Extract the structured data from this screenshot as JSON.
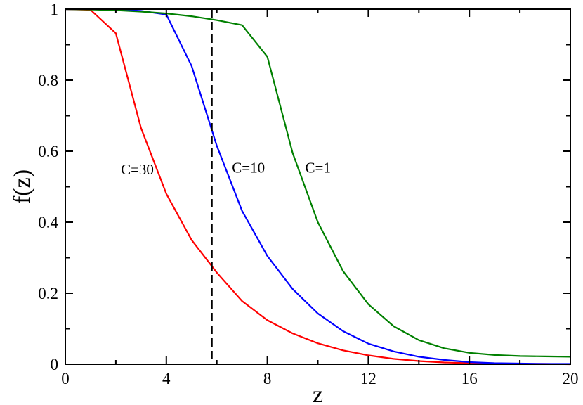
{
  "chart_data": {
    "type": "line",
    "title": "",
    "xlabel": "z",
    "ylabel": "f(z)",
    "xlim": [
      0,
      20
    ],
    "ylim": [
      0,
      1
    ],
    "xticks": [
      0,
      4,
      8,
      12,
      16,
      20
    ],
    "xtick_labels": [
      "0",
      "4",
      "8",
      "12",
      "16",
      "20"
    ],
    "yticks": [
      0,
      0.2,
      0.4,
      0.6,
      0.8,
      1
    ],
    "ytick_labels": [
      "0",
      "0.2",
      "0.4",
      "0.6",
      "0.8",
      "1"
    ],
    "grid": false,
    "legend": "none",
    "series": [
      {
        "name": "C=30",
        "color": "#ff0000",
        "x": [
          0,
          1,
          2,
          3,
          4,
          5,
          6,
          7,
          8,
          9,
          10,
          11,
          12,
          13,
          14,
          15,
          16,
          17,
          18,
          19,
          20
        ],
        "y": [
          1.0,
          0.998,
          0.932,
          0.665,
          0.48,
          0.35,
          0.258,
          0.178,
          0.124,
          0.087,
          0.059,
          0.039,
          0.025,
          0.015,
          0.009,
          0.005,
          0.003,
          0.002,
          0.001,
          0.001,
          0.0
        ]
      },
      {
        "name": "C=10",
        "color": "#0000ff",
        "x": [
          0,
          1,
          2,
          3,
          4,
          5,
          6,
          7,
          8,
          9,
          10,
          11,
          12,
          13,
          14,
          15,
          16,
          17,
          18,
          19,
          20
        ],
        "y": [
          1.0,
          1.0,
          0.999,
          0.995,
          0.985,
          0.84,
          0.615,
          0.432,
          0.305,
          0.212,
          0.143,
          0.093,
          0.058,
          0.036,
          0.021,
          0.012,
          0.006,
          0.003,
          0.002,
          0.001,
          0.001
        ]
      },
      {
        "name": "C=1",
        "color": "#008000",
        "x": [
          0,
          1,
          2,
          3,
          4,
          5,
          6,
          7,
          8,
          9,
          10,
          11,
          12,
          13,
          14,
          15,
          16,
          17,
          18,
          19,
          20
        ],
        "y": [
          1.0,
          0.999,
          0.997,
          0.993,
          0.988,
          0.98,
          0.969,
          0.955,
          0.866,
          0.595,
          0.4,
          0.262,
          0.169,
          0.107,
          0.068,
          0.045,
          0.032,
          0.026,
          0.023,
          0.022,
          0.021
        ]
      }
    ],
    "reference_line": {
      "x": 5.8,
      "style": "dashed",
      "color": "#000000"
    },
    "annotations": [
      {
        "text": "C=30",
        "x": 2.2,
        "y": 0.535
      },
      {
        "text": "C=10",
        "x": 6.6,
        "y": 0.54
      },
      {
        "text": "C=1",
        "x": 9.5,
        "y": 0.54
      }
    ]
  }
}
